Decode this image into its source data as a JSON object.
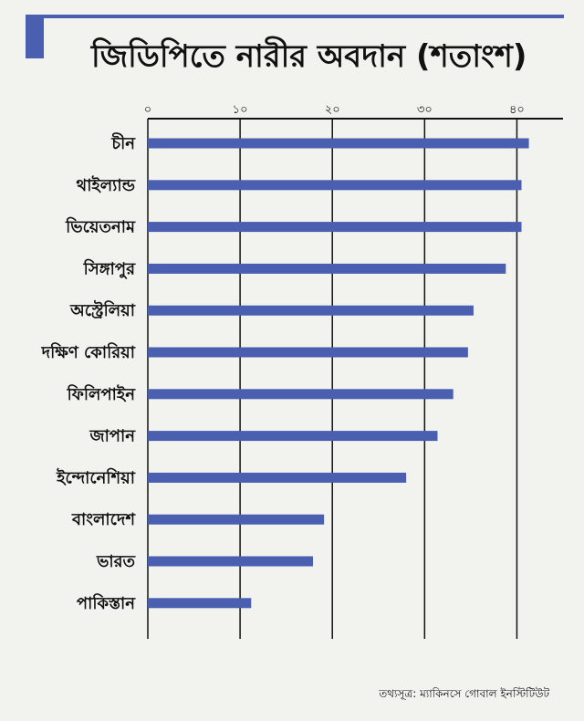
{
  "title": "জিডিপিতে নারীর অবদান (শতাংশ)",
  "source": "তথ্যসূত্র: ম্যাকিনসে গোবাল ইনস্টিটিউট",
  "colors": {
    "accent": "#4a5fb0",
    "grid": "#111111",
    "text": "#111111"
  },
  "chart_data": {
    "type": "bar",
    "orientation": "horizontal",
    "title": "জিডিপিতে নারীর অবদান (শতাংশ)",
    "xlim": [
      0,
      45
    ],
    "ticks": [
      0,
      10,
      20,
      30,
      40
    ],
    "tick_labels": [
      "০",
      "১০",
      "২০",
      "৩০",
      "৪০"
    ],
    "categories": [
      "চীন",
      "থাইল্যান্ড",
      "ভিয়েতনাম",
      "সিঙ্গাপুর",
      "অস্ট্রেলিয়া",
      "দক্ষিণ কোরিয়া",
      "ফিলিপাইন",
      "জাপান",
      "ইন্দোনেশিয়া",
      "বাংলাদেশ",
      "ভারত",
      "পাকিস্তান"
    ],
    "values": [
      41.3,
      40.5,
      40.5,
      38.8,
      35.3,
      34.7,
      33.1,
      31.4,
      28.0,
      19.1,
      17.9,
      11.2
    ],
    "grid": true
  }
}
